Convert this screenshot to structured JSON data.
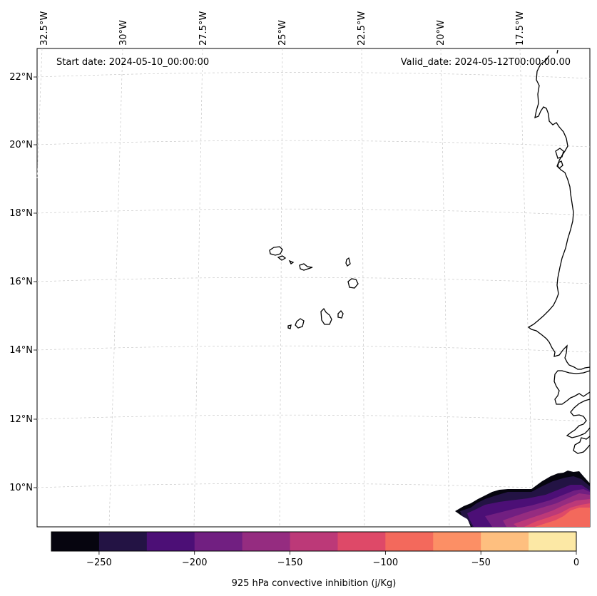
{
  "header": {
    "start_date": "Start date: 2024-05-10_00:00:00",
    "valid_date": "Valid_date: 2024-05-12T00:00:00.00"
  },
  "map": {
    "region": "Cape Verde and West African coast",
    "longitude_labels": [
      "32.5°W",
      "30°W",
      "27.5°W",
      "25°W",
      "22.5°W",
      "20°W",
      "17.5°W"
    ],
    "latitude_labels": [
      "22°N",
      "20°N",
      "18°N",
      "16°N",
      "14°N",
      "12°N",
      "10°N"
    ],
    "gridlines": "dashed"
  },
  "colorbar": {
    "label": "925 hPa convective inhibition (j/Kg)",
    "levels": [
      -275,
      -250,
      -225,
      -200,
      -175,
      -150,
      -125,
      -100,
      -75,
      -50,
      -25,
      0
    ],
    "tick_values": [
      -250,
      -200,
      -150,
      -100,
      -50,
      0
    ],
    "tick_labels": [
      "−250",
      "−200",
      "−150",
      "−100",
      "−50",
      "0"
    ],
    "colors": [
      "#06050f",
      "#231344",
      "#4c0f76",
      "#711f81",
      "#952c80",
      "#bc3978",
      "#de4968",
      "#f3695c",
      "#fc8f65",
      "#febf7f",
      "#fce8a5"
    ]
  }
}
